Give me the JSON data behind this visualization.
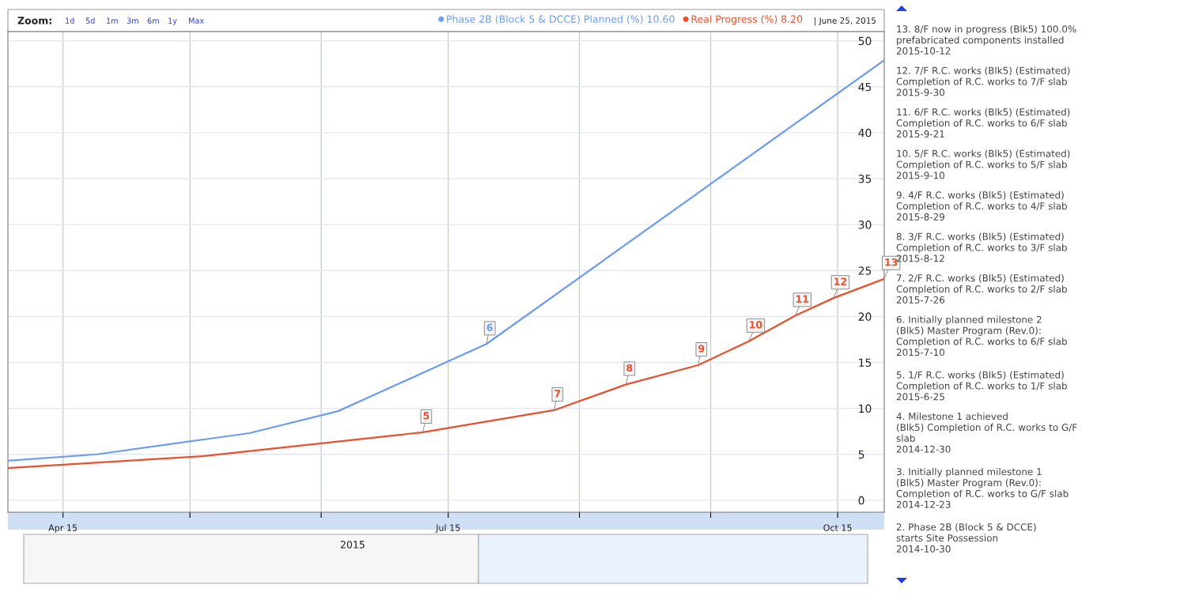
{
  "chart_data": {
    "type": "line",
    "x": [
      "2015-03-19",
      "2015-04-09",
      "2015-05-15",
      "2015-06-05",
      "2015-07-10",
      "2015-10-12"
    ],
    "series": [
      {
        "name": "Phase 2B (Block 5 & DCCE) Planned (%) 10.60",
        "color": "#6b9cf0",
        "values": [
          4.3,
          5.0,
          7.3,
          9.7,
          17.0,
          47.9
        ]
      },
      {
        "name": "Real Progress (%) 8.20",
        "color": "#e8502e",
        "x": [
          "2015-03-19",
          "2015-05-04",
          "2015-06-25",
          "2015-07-26",
          "2015-08-12",
          "2015-08-29",
          "2015-09-10",
          "2015-09-21",
          "2015-09-30",
          "2015-10-12"
        ],
        "values": [
          3.5,
          4.8,
          7.4,
          9.8,
          12.6,
          14.7,
          17.3,
          20.1,
          22.0,
          24.1
        ]
      }
    ],
    "xlim": [
      "2015-03-19",
      "2015-10-12"
    ],
    "xticks": [
      {
        "value": "2015-04-01",
        "label": "Apr 15"
      },
      {
        "value": "2015-05-01",
        "label": null
      },
      {
        "value": "2015-06-01",
        "label": null
      },
      {
        "value": "2015-07-01",
        "label": "Jul 15"
      },
      {
        "value": "2015-08-01",
        "label": null
      },
      {
        "value": "2015-09-01",
        "label": null
      },
      {
        "value": "2015-10-01",
        "label": "Oct 15"
      }
    ],
    "ylim": [
      -1.3,
      51
    ],
    "yticks": [
      0,
      5,
      10,
      15,
      20,
      25,
      30,
      35,
      40,
      45,
      50
    ],
    "grid": true,
    "legend": "top right",
    "marker": "none",
    "line_style": "solid",
    "annotations": [
      "Zoom:",
      "1d",
      "5d",
      "1m",
      "3m",
      "6m",
      "1y",
      "Max",
      "| June 25, 2015",
      "13. 8/F now in progress (Blk5) 100.0%\nprefabricated components installed\n2015-10-12",
      "12. 7/F R.C. works (Blk5) (Estimated)\nCompletion of R.C. works to 7/F slab\n2015-9-30",
      "11. 6/F R.C. works (Blk5) (Estimated)\nCompletion of R.C. works to 6/F slab\n2015-9-21",
      "10. 5/F R.C. works (Blk5) (Estimated)\nCompletion of R.C. works to 5/F slab\n2015-9-10",
      "9. 4/F R.C. works (Blk5) (Estimated)\nCompletion of R.C. works to 4/F slab\n2015-8-29",
      "8. 3/F R.C. works (Blk5) (Estimated)\nCompletion of R.C. works to 3/F slab\n2015-8-12",
      "7. 2/F R.C. works (Blk5) (Estimated)\nCompletion of R.C. works to 2/F slab\n2015-7-26",
      "6. Initially planned milestone 2\n(Blk5) Master Program (Rev.0):\nCompletion of R.C. works to 6/F slab\n2015-7-10",
      "5. 1/F R.C. works (Blk5) (Estimated)\nCompletion of R.C. works to 1/F slab\n2015-6-25",
      "4. Milestone 1 achieved\n(Blk5) Completion of R.C. works to G/F\nslab\n2014-12-30",
      "3. Initially planned milestone 1\n(Blk5) Master Program (Rev.0):\nCompletion of R.C. works to G/F slab\n2014-12-23",
      "2. Phase 2B (Block 5 & DCCE)\nstarts Site Possession\n2014-10-30",
      "2015",
      {
        "text": "5",
        "x": "2015-06-25",
        "y": 7.4
      },
      {
        "text": "6",
        "x": "2015-07-10",
        "y": 17.0
      },
      {
        "text": "7",
        "x": "2015-07-26",
        "y": 9.8
      },
      {
        "text": "8",
        "x": "2015-08-12",
        "y": 12.6
      },
      {
        "text": "9",
        "x": "2015-08-29",
        "y": 14.7
      },
      {
        "text": "10",
        "x": "2015-09-10",
        "y": 17.3
      },
      {
        "text": "11",
        "x": "2015-09-21",
        "y": 20.1
      },
      {
        "text": "12",
        "x": "2015-09-30",
        "y": 22.0
      },
      {
        "text": "13",
        "x": "2015-10-12",
        "y": 24.1
      }
    ]
  }
}
